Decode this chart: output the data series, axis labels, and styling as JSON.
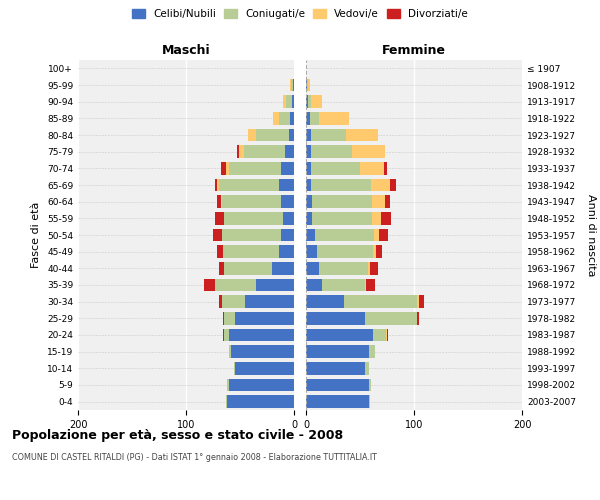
{
  "age_groups": [
    "0-4",
    "5-9",
    "10-14",
    "15-19",
    "20-24",
    "25-29",
    "30-34",
    "35-39",
    "40-44",
    "45-49",
    "50-54",
    "55-59",
    "60-64",
    "65-69",
    "70-74",
    "75-79",
    "80-84",
    "85-89",
    "90-94",
    "95-99",
    "100+"
  ],
  "birth_years": [
    "2003-2007",
    "1998-2002",
    "1993-1997",
    "1988-1992",
    "1983-1987",
    "1978-1982",
    "1973-1977",
    "1968-1972",
    "1963-1967",
    "1958-1962",
    "1953-1957",
    "1948-1952",
    "1943-1947",
    "1938-1942",
    "1933-1937",
    "1928-1932",
    "1923-1927",
    "1918-1922",
    "1913-1917",
    "1908-1912",
    "≤ 1907"
  ],
  "maschi": {
    "celibi": [
      62,
      60,
      55,
      58,
      60,
      55,
      45,
      35,
      20,
      14,
      12,
      10,
      12,
      14,
      12,
      8,
      5,
      4,
      2,
      1,
      0
    ],
    "coniugati": [
      1,
      2,
      1,
      2,
      5,
      10,
      22,
      38,
      45,
      52,
      55,
      55,
      55,
      55,
      48,
      38,
      30,
      10,
      5,
      2,
      0
    ],
    "vedovi": [
      0,
      0,
      0,
      0,
      0,
      0,
      0,
      0,
      0,
      0,
      0,
      0,
      1,
      2,
      3,
      5,
      8,
      5,
      3,
      1,
      0
    ],
    "divorziati": [
      0,
      0,
      0,
      0,
      1,
      1,
      2,
      10,
      4,
      5,
      8,
      8,
      3,
      2,
      5,
      2,
      0,
      0,
      0,
      0,
      0
    ]
  },
  "femmine": {
    "nubili": [
      58,
      58,
      55,
      58,
      62,
      55,
      35,
      15,
      12,
      10,
      8,
      6,
      6,
      5,
      5,
      5,
      5,
      4,
      2,
      1,
      0
    ],
    "coniugate": [
      1,
      2,
      3,
      6,
      12,
      48,
      68,
      40,
      45,
      52,
      55,
      55,
      55,
      55,
      45,
      38,
      32,
      8,
      3,
      1,
      0
    ],
    "vedove": [
      0,
      0,
      0,
      0,
      1,
      0,
      2,
      1,
      2,
      3,
      5,
      8,
      12,
      18,
      22,
      30,
      30,
      28,
      10,
      2,
      0
    ],
    "divorziate": [
      0,
      0,
      0,
      0,
      1,
      2,
      4,
      8,
      8,
      5,
      8,
      10,
      5,
      5,
      3,
      0,
      0,
      0,
      0,
      0,
      0
    ]
  },
  "colors": {
    "celibi_nubili": "#4472c4",
    "coniugati": "#b8cc96",
    "vedovi": "#ffc96e",
    "divorziati": "#cc2020"
  },
  "xlim": 200,
  "title": "Popolazione per età, sesso e stato civile - 2008",
  "subtitle": "COMUNE DI CASTEL RITALDI (PG) - Dati ISTAT 1° gennaio 2008 - Elaborazione TUTTITALIA.IT",
  "ylabel_left": "Fasce di età",
  "ylabel_right": "Anni di nascita",
  "label_maschi": "Maschi",
  "label_femmine": "Femmine",
  "legend_labels": [
    "Celibi/Nubili",
    "Coniugati/e",
    "Vedovi/e",
    "Divorziati/e"
  ],
  "background_color": "#ffffff",
  "plot_bg_color": "#f0f0f0"
}
